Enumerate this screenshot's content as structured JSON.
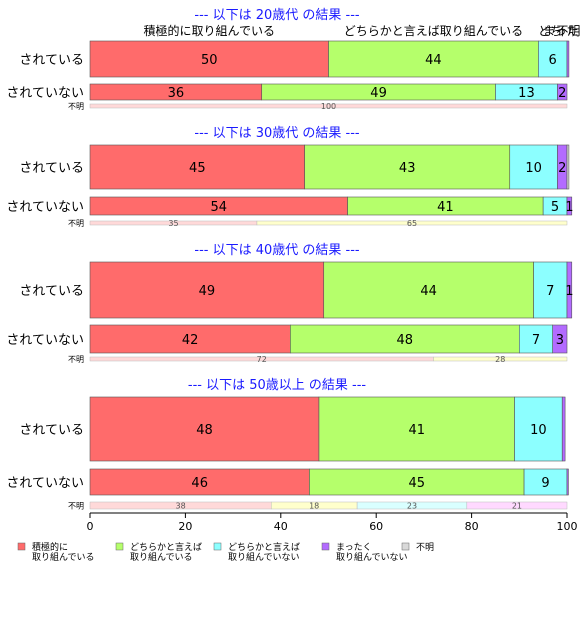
{
  "chart_data": {
    "type": "bar",
    "orientation": "horizontal-stacked-percent",
    "xlim": [
      0,
      100
    ],
    "xticks": [
      0,
      20,
      40,
      60,
      80,
      100
    ],
    "legend_position": "bottom",
    "top_labels": [
      {
        "text": "積極的に取り組んでいる",
        "at": 25
      },
      {
        "text": "どちらかと言えば取り組んでいる",
        "at": 72
      },
      {
        "text": "どち",
        "at": 96.5
      },
      {
        "text": "まった",
        "at": 98.7
      },
      {
        "text": "不明",
        "at": 100.3
      }
    ],
    "legend": [
      {
        "lines": [
          "積極的に",
          "取り組んでいる"
        ],
        "color": "#ff6b6b"
      },
      {
        "lines": [
          "どちらかと言えば",
          "取り組んでいる"
        ],
        "color": "#b5ff6b"
      },
      {
        "lines": [
          "どちらかと言えば",
          "取り組んでいない"
        ],
        "color": "#8cffff"
      },
      {
        "lines": [
          "まったく",
          "取り組んでいない"
        ],
        "color": "#b36bff"
      },
      {
        "lines": [
          "不明"
        ],
        "color": "#d9d9d9"
      }
    ],
    "colors": [
      "#ff6b6b",
      "#b5ff6b",
      "#8cffff",
      "#b36bff",
      "#d9d9d9"
    ],
    "light_colors": [
      "#ffd9d9",
      "#ffffcc",
      "#d9ffff",
      "#ffd9ff",
      "#eeeeee"
    ],
    "groups": [
      {
        "title": "--- 以下は 20歳代 の結果 ---",
        "rows": [
          {
            "label": "されている",
            "values": [
              50,
              44,
              6,
              0.4,
              0
            ],
            "labels": [
              "50",
              "44",
              "6",
              "",
              ""
            ],
            "size": "large"
          },
          {
            "label": "されていない",
            "values": [
              36,
              49,
              13,
              2,
              0
            ],
            "labels": [
              "36",
              "49",
              "13",
              "2",
              ""
            ],
            "size": "medium"
          },
          {
            "label": "不明",
            "values": [
              100,
              0,
              0,
              0,
              0
            ],
            "labels": [
              "100",
              "",
              "",
              "",
              ""
            ],
            "size": "small"
          }
        ]
      },
      {
        "title": "--- 以下は 30歳代 の結果 ---",
        "rows": [
          {
            "label": "されている",
            "values": [
              45,
              43,
              10,
              2,
              0.4
            ],
            "labels": [
              "45",
              "43",
              "10",
              "2",
              ""
            ],
            "size": "large"
          },
          {
            "label": "されていない",
            "values": [
              54,
              41,
              5,
              1,
              0
            ],
            "labels": [
              "54",
              "41",
              "5",
              "1",
              ""
            ],
            "size": "medium"
          },
          {
            "label": "不明",
            "values": [
              35,
              65,
              0,
              0,
              0
            ],
            "labels": [
              "35",
              "65",
              "",
              "",
              ""
            ],
            "size": "small"
          }
        ]
      },
      {
        "title": "--- 以下は 40歳代 の結果 ---",
        "rows": [
          {
            "label": "されている",
            "values": [
              49,
              44,
              7,
              1,
              0
            ],
            "labels": [
              "49",
              "44",
              "7",
              "1",
              ""
            ],
            "size": "large"
          },
          {
            "label": "されていない",
            "values": [
              42,
              48,
              7,
              3,
              0
            ],
            "labels": [
              "42",
              "48",
              "7",
              "3",
              ""
            ],
            "size": "medium"
          },
          {
            "label": "不明",
            "values": [
              72,
              28,
              0,
              0,
              0
            ],
            "labels": [
              "72",
              "28",
              "",
              "",
              ""
            ],
            "size": "small"
          }
        ]
      },
      {
        "title": "--- 以下は 50歳以上 の結果 ---",
        "rows": [
          {
            "label": "されている",
            "values": [
              48,
              41,
              10,
              0.6,
              0
            ],
            "labels": [
              "48",
              "41",
              "10",
              "",
              ""
            ],
            "size": "large"
          },
          {
            "label": "されていない",
            "values": [
              46,
              45,
              9,
              0.3,
              0
            ],
            "labels": [
              "46",
              "45",
              "9",
              "",
              ""
            ],
            "size": "medium"
          },
          {
            "label": "不明",
            "values": [
              38,
              18,
              23,
              21,
              0
            ],
            "labels": [
              "38",
              "18",
              "23",
              "21",
              ""
            ],
            "size": "small"
          }
        ]
      }
    ]
  }
}
